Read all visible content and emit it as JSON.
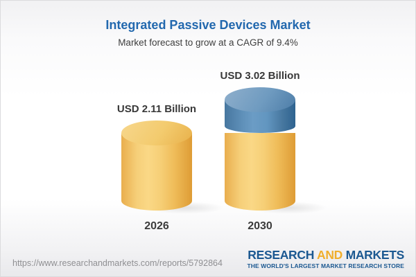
{
  "header": {
    "title": "Integrated Passive Devices Market",
    "subtitle": "Market forecast to grow at a CAGR of 9.4%"
  },
  "chart_data": {
    "type": "bar",
    "variant": "3d-cylinder",
    "title": "Integrated Passive Devices Market",
    "subtitle": "Market forecast to grow at a CAGR of 9.4%",
    "unit": "USD Billion",
    "cagr_percent": 9.4,
    "categories": [
      "2026",
      "2030"
    ],
    "values": [
      2.11,
      3.02
    ],
    "value_labels": [
      "USD 2.11 Billion",
      "USD 3.02 Billion"
    ],
    "series": [
      {
        "name": "base-market-size",
        "color_name": "gold",
        "color": "#F3C76A",
        "values": [
          2.11,
          2.11
        ]
      },
      {
        "name": "forecast-growth",
        "color_name": "blue",
        "color": "#5587B2",
        "values": [
          0,
          0.91
        ]
      }
    ],
    "ylim": [
      0,
      3.4
    ],
    "grid": false,
    "legend": false
  },
  "footer": {
    "url": "https://www.researchandmarkets.com/reports/5792864",
    "logo": {
      "word_research": "RESEARCH",
      "word_and": "AND",
      "word_markets": "MARKETS",
      "tagline": "THE WORLD'S LARGEST MARKET RESEARCH STORE",
      "blue": "#1B5891",
      "gold": "#F0AE2C"
    }
  }
}
